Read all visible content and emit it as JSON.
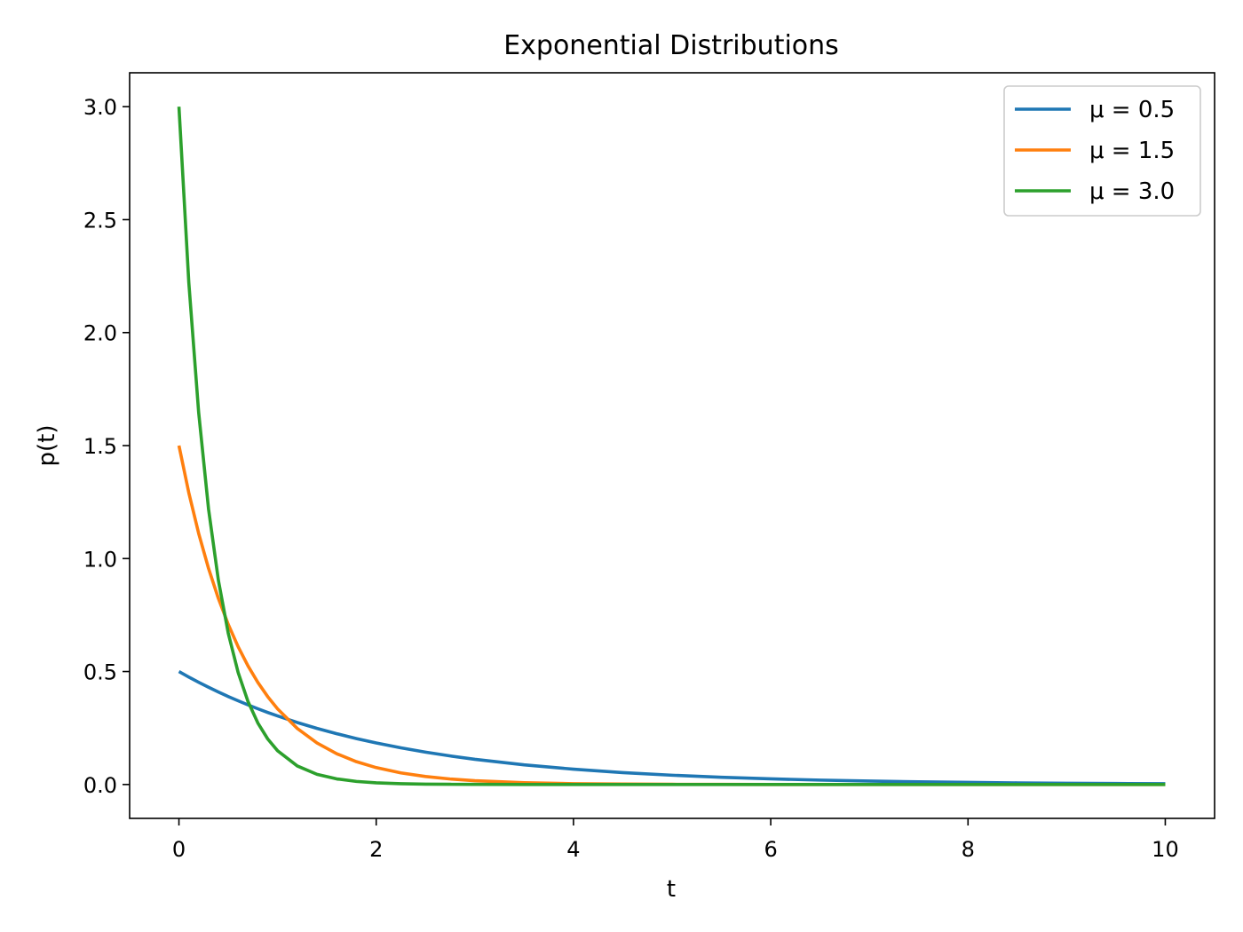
{
  "chart_data": {
    "type": "line",
    "title": "Exponential Distributions",
    "xlabel": "t",
    "ylabel": "p(t)",
    "xlim": [
      -0.5,
      10.5
    ],
    "ylim": [
      -0.15,
      3.15
    ],
    "x_ticks": [
      0,
      2,
      4,
      6,
      8,
      10
    ],
    "x_tick_labels": [
      "0",
      "2",
      "4",
      "6",
      "8",
      "10"
    ],
    "y_ticks": [
      0.0,
      0.5,
      1.0,
      1.5,
      2.0,
      2.5,
      3.0
    ],
    "y_tick_labels": [
      "0.0",
      "0.5",
      "1.0",
      "1.5",
      "2.0",
      "2.5",
      "3.0"
    ],
    "grid": false,
    "legend_position": "top-right",
    "x": [
      0,
      0.1,
      0.2,
      0.3,
      0.4,
      0.5,
      0.6,
      0.7,
      0.8,
      0.9,
      1.0,
      1.2,
      1.4,
      1.6,
      1.8,
      2.0,
      2.25,
      2.5,
      2.75,
      3.0,
      3.5,
      4.0,
      4.5,
      5.0,
      5.5,
      6.0,
      6.5,
      7.0,
      7.5,
      8.0,
      8.5,
      9.0,
      9.5,
      10.0
    ],
    "series": [
      {
        "name": "μ = 0.5",
        "color": "#1f77b4",
        "values": [
          0.5,
          0.4756,
          0.4524,
          0.4304,
          0.4094,
          0.3894,
          0.3704,
          0.3523,
          0.3352,
          0.3188,
          0.3033,
          0.2744,
          0.2483,
          0.2247,
          0.2033,
          0.1839,
          0.1623,
          0.1433,
          0.1264,
          0.1116,
          0.0869,
          0.0677,
          0.0527,
          0.041,
          0.032,
          0.0249,
          0.0194,
          0.0151,
          0.0118,
          0.0092,
          0.0071,
          0.0056,
          0.0043,
          0.0034
        ]
      },
      {
        "name": "μ = 1.5",
        "color": "#ff7f0e",
        "values": [
          1.5,
          1.2911,
          1.1112,
          0.9564,
          0.8232,
          0.7085,
          0.6099,
          0.5249,
          0.4518,
          0.3889,
          0.3347,
          0.248,
          0.1837,
          0.1361,
          0.1008,
          0.0747,
          0.0513,
          0.0353,
          0.0243,
          0.0167,
          0.0079,
          0.0037,
          0.0018,
          0.0008,
          0.0004,
          0.0002,
          0.0001,
          0.0,
          0.0,
          0.0,
          0.0,
          0.0,
          0.0,
          0.0
        ]
      },
      {
        "name": "μ = 3.0",
        "color": "#2ca02c",
        "values": [
          3.0,
          2.2225,
          1.6464,
          1.2197,
          0.9036,
          0.6694,
          0.4959,
          0.3674,
          0.2722,
          0.2016,
          0.1494,
          0.082,
          0.045,
          0.0247,
          0.0136,
          0.0074,
          0.0035,
          0.0017,
          0.0008,
          0.0004,
          0.0001,
          0.0,
          0.0,
          0.0,
          0.0,
          0.0,
          0.0,
          0.0,
          0.0,
          0.0,
          0.0,
          0.0,
          0.0,
          0.0
        ]
      }
    ]
  }
}
